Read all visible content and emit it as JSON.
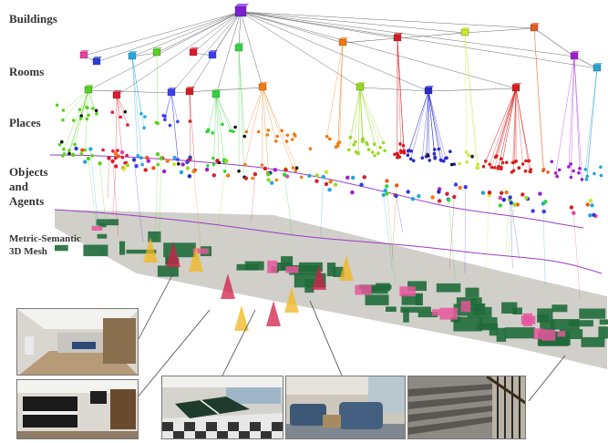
{
  "labels": {
    "buildings": "Buildings",
    "rooms": "Rooms",
    "places": "Places",
    "objects_line1": "Objects",
    "objects_line2": "and",
    "objects_line3": "Agents",
    "mesh_line1": "Metric-Semantic",
    "mesh_line2": "3D Mesh"
  },
  "colors": {
    "building": "#7b1fd1",
    "rooms": [
      "#ea3d9c",
      "#2a3bd8",
      "#24a9e0",
      "#58d21d",
      "#e2192f",
      "#3a3df0",
      "#31d33c",
      "#f07b10",
      "#d61a20",
      "#c6e92a",
      "#e8591b",
      "#a21ad6",
      "#22a4d6",
      "#9ad921",
      "#2929c9",
      "#d6201e"
    ],
    "mesh_floor": "#c9c7c0",
    "mesh_green": "#1f6b3a",
    "mesh_pink": "#e6569c",
    "trajectory": "#9a3cc4",
    "edge": "#6f6f6f"
  },
  "photos": [
    {
      "name": "photo-hallway",
      "scene": "hallway"
    },
    {
      "name": "photo-piano-room",
      "scene": "piano"
    },
    {
      "name": "photo-pingpong-room",
      "scene": "pingpong"
    },
    {
      "name": "photo-lounge",
      "scene": "lounge"
    },
    {
      "name": "photo-stairs",
      "scene": "stairs"
    }
  ]
}
